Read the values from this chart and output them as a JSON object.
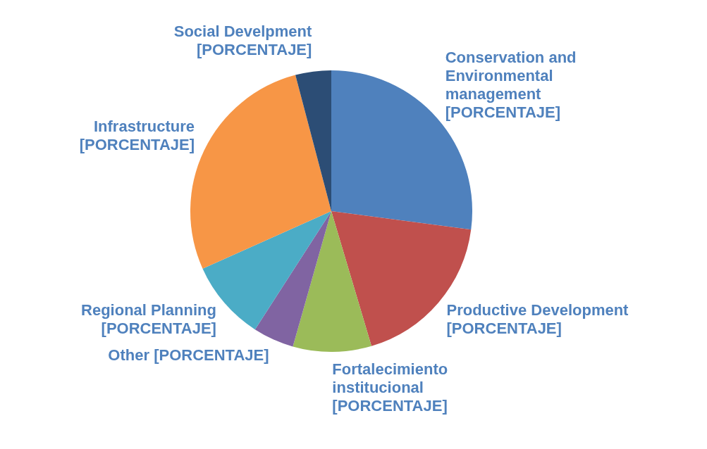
{
  "chart_data": {
    "type": "pie",
    "categories": [
      "Conservation and Environmental management [PORCENTAJE]",
      "Productive Development [PORCENTAJE]",
      "Fortalecimiento institucional [PORCENTAJE]",
      "Other [PORCENTAJE]",
      "Regional Planning [PORCENTAJE]",
      "Infrastructure [PORCENTAJE]",
      "Social Develpment [PORCENTAJE]"
    ],
    "values": [
      27.1,
      18.3,
      9,
      4.7,
      9.2,
      27.6,
      4.1
    ],
    "colors": [
      "#4f81bd",
      "#c0504d",
      "#9bbb59",
      "#8064a2",
      "#4bacc6",
      "#f79646",
      "#2c4d75"
    ],
    "legend": false
  }
}
